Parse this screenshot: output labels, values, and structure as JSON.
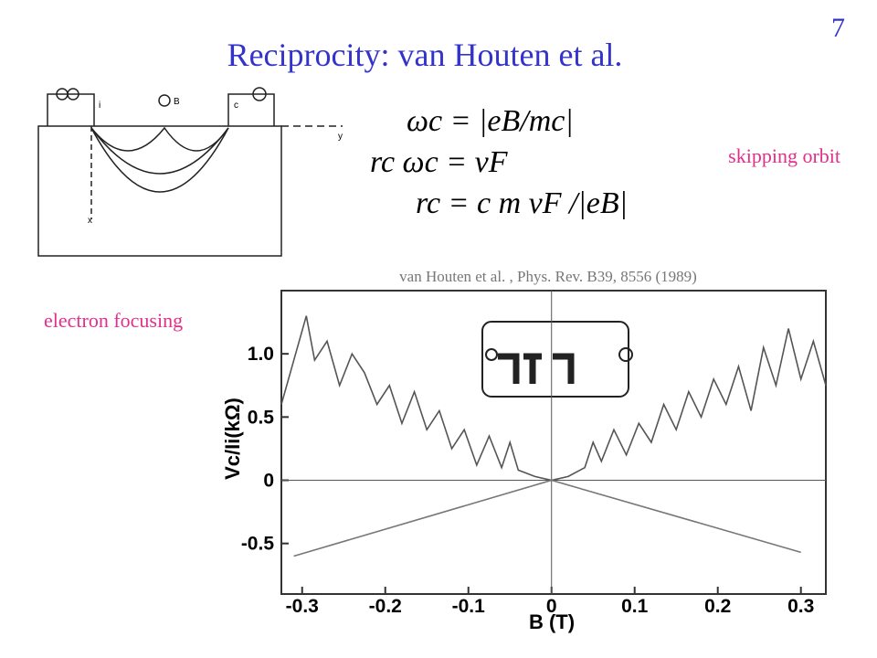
{
  "slide_number": "7",
  "title": "Reciprocity: van Houten et al.",
  "formulas": [
    "ωc = |eB/mc|",
    "rc ωc = vF",
    "rc = c m vF /|eB|"
  ],
  "skipping_label": "skipping orbit",
  "focusing_label": "electron focusing",
  "reference": "van Houten et al. , Phys. Rev. B39, 8556 (1989)",
  "diagram": {
    "labels": [
      "i",
      "B",
      "c",
      "y",
      "x"
    ]
  },
  "chart_data": {
    "type": "line",
    "ylabel": "Vc/Ii(kΩ)",
    "xlabel": "B (T)",
    "xlim": [
      -0.325,
      0.33
    ],
    "ylim": [
      -0.9,
      1.5
    ],
    "xticks": [
      -0.3,
      -0.2,
      -0.1,
      0,
      0.1,
      0.2,
      0.3
    ],
    "yticks": [
      -0.5,
      0,
      0.5,
      {
        "value": 1,
        "label": "1.0"
      }
    ],
    "series": [
      {
        "color": "#555555",
        "x": [
          -0.325,
          -0.31,
          -0.295,
          -0.285,
          -0.27,
          -0.255,
          -0.24,
          -0.225,
          -0.21,
          -0.195,
          -0.18,
          -0.165,
          -0.15,
          -0.135,
          -0.12,
          -0.105,
          -0.09,
          -0.075,
          -0.06,
          -0.05,
          -0.04,
          -0.02,
          0,
          0.02,
          0.04,
          0.05,
          0.06,
          0.075,
          0.09,
          0.105,
          0.12,
          0.135,
          0.15,
          0.165,
          0.18,
          0.195,
          0.21,
          0.225,
          0.24,
          0.255,
          0.27,
          0.285,
          0.3,
          0.315,
          0.33
        ],
        "values": [
          0.6,
          0.95,
          1.3,
          0.95,
          1.1,
          0.75,
          1.0,
          0.85,
          0.6,
          0.75,
          0.45,
          0.7,
          0.4,
          0.55,
          0.25,
          0.4,
          0.12,
          0.35,
          0.1,
          0.3,
          0.08,
          0.03,
          0,
          0.03,
          0.1,
          0.3,
          0.15,
          0.4,
          0.2,
          0.45,
          0.3,
          0.6,
          0.4,
          0.7,
          0.5,
          0.8,
          0.6,
          0.9,
          0.55,
          1.05,
          0.75,
          1.2,
          0.8,
          1.1,
          0.75
        ]
      },
      {
        "color": "#777777",
        "x": [
          -0.31,
          0,
          0.3
        ],
        "values": [
          -0.6,
          0,
          -0.57
        ]
      }
    ]
  }
}
